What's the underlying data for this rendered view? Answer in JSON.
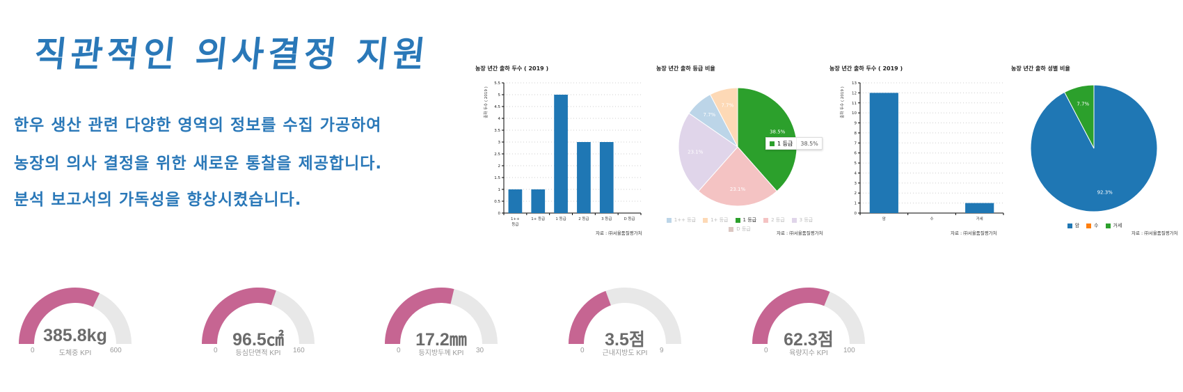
{
  "header": {
    "title": "직관적인 의사결정 지원",
    "lines": [
      "한우 생산 관련 다양한 영역의 정보를 수집 가공하여",
      "농장의 의사 결정을 위한 새로운 통찰을 제공합니다.",
      "분석 보고서의 가독성을 향상시켰습니다."
    ]
  },
  "colors": {
    "accent": "#2a78b8",
    "bar": "#1f77b4",
    "gauge_fill": "#c66592",
    "gauge_track": "#e8e8e8"
  },
  "chart_data": [
    {
      "type": "bar",
      "title": "농장 년간 출하 두수 ( 2019 )",
      "ylabel": "출하 두수 ( 2019 )",
      "categories": [
        "1++ 등급",
        "1+ 등급",
        "1 등급",
        "2 등급",
        "3 등급",
        "D 등급"
      ],
      "values": [
        1,
        1,
        5,
        3,
        3,
        0
      ],
      "ylim": [
        0,
        5.5
      ],
      "yticks": [
        "0",
        "0.5",
        "1",
        "1.5",
        "2",
        "2.5",
        "3",
        "3.5",
        "4",
        "4.5",
        "5",
        "5.5"
      ],
      "grid": true,
      "source": "자료 : ㈜서울품질평가처"
    },
    {
      "type": "pie",
      "title": "농장 년간 출하 등급 비율",
      "slices": [
        {
          "label": "1 등급",
          "value": 38.5,
          "text": "38.5%",
          "color": "#2ca02c"
        },
        {
          "label": "2 등급",
          "value": 23.1,
          "text": "23.1%",
          "color": "#f4c3c3"
        },
        {
          "label": "3 등급",
          "value": 23.1,
          "text": "23.1%",
          "color": "#e0d5ea"
        },
        {
          "label": "1++ 등급",
          "value": 7.7,
          "text": "7.7%",
          "color": "#bcd5e8"
        },
        {
          "label": "1+ 등급",
          "value": 7.7,
          "text": "7.7%",
          "color": "#fdd9b6"
        }
      ],
      "legend": [
        {
          "label": "1++ 등급",
          "color": "#bcd5e8"
        },
        {
          "label": "1+ 등급",
          "color": "#fdd9b6"
        },
        {
          "label": "1 등급",
          "color": "#2ca02c"
        },
        {
          "label": "2 등급",
          "color": "#f4c3c3"
        },
        {
          "label": "3 등급",
          "color": "#e0d5ea"
        },
        {
          "label": "D 등급",
          "color": "#dcc7c2"
        }
      ],
      "tooltip": {
        "label": "1 등급",
        "value": "38.5%"
      },
      "source": "자료 : ㈜서울품질평가처"
    },
    {
      "type": "bar",
      "title": "농장 년간 출하 두수 ( 2019 )",
      "ylabel": "출하 두수 ( 2019 )",
      "categories": [
        "암",
        "수",
        "거세"
      ],
      "values": [
        12,
        0,
        1
      ],
      "ylim": [
        0,
        13
      ],
      "yticks": [
        "0",
        "1",
        "2",
        "3",
        "4",
        "5",
        "6",
        "7",
        "8",
        "9",
        "10",
        "11",
        "12",
        "13"
      ],
      "grid": true,
      "source": "자료 : ㈜서울품질평가처"
    },
    {
      "type": "pie",
      "title": "농장 년간 출하 성별 비율",
      "slices": [
        {
          "label": "암",
          "value": 92.3,
          "text": "92.3%",
          "color": "#1f77b4"
        },
        {
          "label": "수",
          "value": 0,
          "text": "",
          "color": "#ff7f0e"
        },
        {
          "label": "거세",
          "value": 7.7,
          "text": "7.7%",
          "color": "#2ca02c"
        }
      ],
      "legend": [
        {
          "label": "암",
          "color": "#1f77b4"
        },
        {
          "label": "수",
          "color": "#ff7f0e"
        },
        {
          "label": "거세",
          "color": "#2ca02c"
        }
      ],
      "source": "자료 : ㈜서울품질평가처"
    }
  ],
  "gauges": [
    {
      "value": 385.8,
      "display": "385.8kg",
      "min": "0",
      "max": "600",
      "minv": 0,
      "maxv": 600,
      "label": "도체중 KPI"
    },
    {
      "value": 96.5,
      "display": "96.5㎠",
      "min": "0",
      "max": "160",
      "minv": 0,
      "maxv": 160,
      "label": "등심단면적 KPI"
    },
    {
      "value": 17.2,
      "display": "17.2㎜",
      "min": "0",
      "max": "30",
      "minv": 0,
      "maxv": 30,
      "label": "등지방두께 KPI"
    },
    {
      "value": 3.5,
      "display": "3.5점",
      "min": "0",
      "max": "9",
      "minv": 0,
      "maxv": 9,
      "label": "근내지방도 KPI"
    },
    {
      "value": 62.3,
      "display": "62.3점",
      "min": "0",
      "max": "100",
      "minv": 0,
      "maxv": 100,
      "label": "육량지수 KPI"
    }
  ]
}
